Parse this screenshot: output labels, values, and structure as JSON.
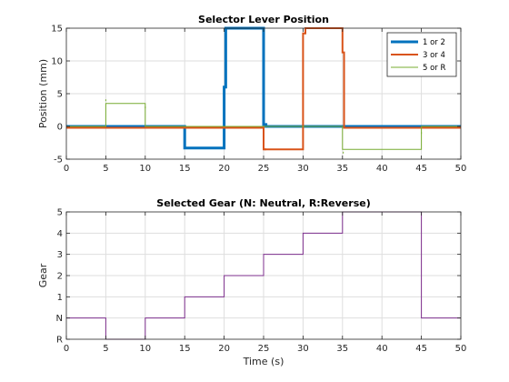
{
  "colors": {
    "background": "#ffffff",
    "grid": "#dedede",
    "axis": "#262626",
    "series_blue": "#0072bd",
    "series_orange": "#d95319",
    "series_green": "#77ac30",
    "series_purple": "#7e2f8e"
  },
  "chart_data": [
    {
      "type": "line",
      "title": "Selector Lever Position",
      "xlabel": "",
      "ylabel": "Position (mm)",
      "xlim": [
        0,
        50
      ],
      "ylim": [
        -5,
        15
      ],
      "xticks": [
        0,
        5,
        10,
        15,
        20,
        25,
        30,
        35,
        40,
        45,
        50
      ],
      "yticks": [
        -5,
        0,
        5,
        10,
        15
      ],
      "grid": true,
      "legend_position": "top-right",
      "series": [
        {
          "name": "1 or 2",
          "color": "#0072bd",
          "width": "thick",
          "x": [
            0,
            15,
            15,
            20,
            20,
            20.2,
            20.2,
            25,
            25,
            25.3,
            25.3,
            50
          ],
          "y": [
            0,
            0,
            -3.3,
            -3.3,
            6,
            6,
            15,
            15,
            0.3,
            0.3,
            0,
            0
          ]
        },
        {
          "name": "3 or 4",
          "color": "#d95319",
          "width": "medium",
          "x": [
            0,
            25,
            25,
            30,
            30,
            30.3,
            30.3,
            35,
            35,
            35.2,
            35.2,
            50
          ],
          "y": [
            -0.2,
            -0.2,
            -3.5,
            -3.5,
            14.2,
            14.2,
            15,
            15,
            11.3,
            11.3,
            -0.2,
            -0.2
          ],
          "marks": [
            {
              "x": 25.2,
              "y": -3.5
            }
          ]
        },
        {
          "name": "5 or R",
          "color": "#77ac30",
          "width": "thin",
          "x": [
            0,
            5,
            5,
            10,
            10,
            35,
            35,
            45,
            45,
            50
          ],
          "y": [
            0,
            0,
            3.5,
            3.5,
            0,
            0,
            -3.5,
            -3.5,
            0,
            0
          ],
          "marks": [
            {
              "x": 5,
              "y": 4.0
            },
            {
              "x": 10,
              "y": 2.9
            },
            {
              "x": 35.1,
              "y": -4.0
            },
            {
              "x": 45,
              "y": -1.0
            }
          ]
        }
      ]
    },
    {
      "type": "line",
      "title": "Selected Gear (N: Neutral, R:Reverse)",
      "xlabel": "Time (s)",
      "ylabel": "Gear",
      "xlim": [
        0,
        50
      ],
      "ylim": [
        -1,
        5
      ],
      "xticks": [
        0,
        5,
        10,
        15,
        20,
        25,
        30,
        35,
        40,
        45,
        50
      ],
      "yticks": [
        -1,
        0,
        1,
        2,
        3,
        4,
        5
      ],
      "ytick_labels": [
        "R",
        "N",
        "1",
        "2",
        "3",
        "4",
        "5"
      ],
      "grid": true,
      "series": [
        {
          "color": "#7e2f8e",
          "width": "thin",
          "x": [
            0,
            5,
            5,
            10,
            10,
            15,
            15,
            20,
            20,
            25,
            25,
            30,
            30,
            35,
            35,
            45,
            45,
            50
          ],
          "y": [
            0,
            0,
            -1,
            -1,
            0,
            0,
            1,
            1,
            2,
            2,
            3,
            3,
            4,
            4,
            5,
            5,
            0,
            0
          ]
        }
      ]
    }
  ]
}
